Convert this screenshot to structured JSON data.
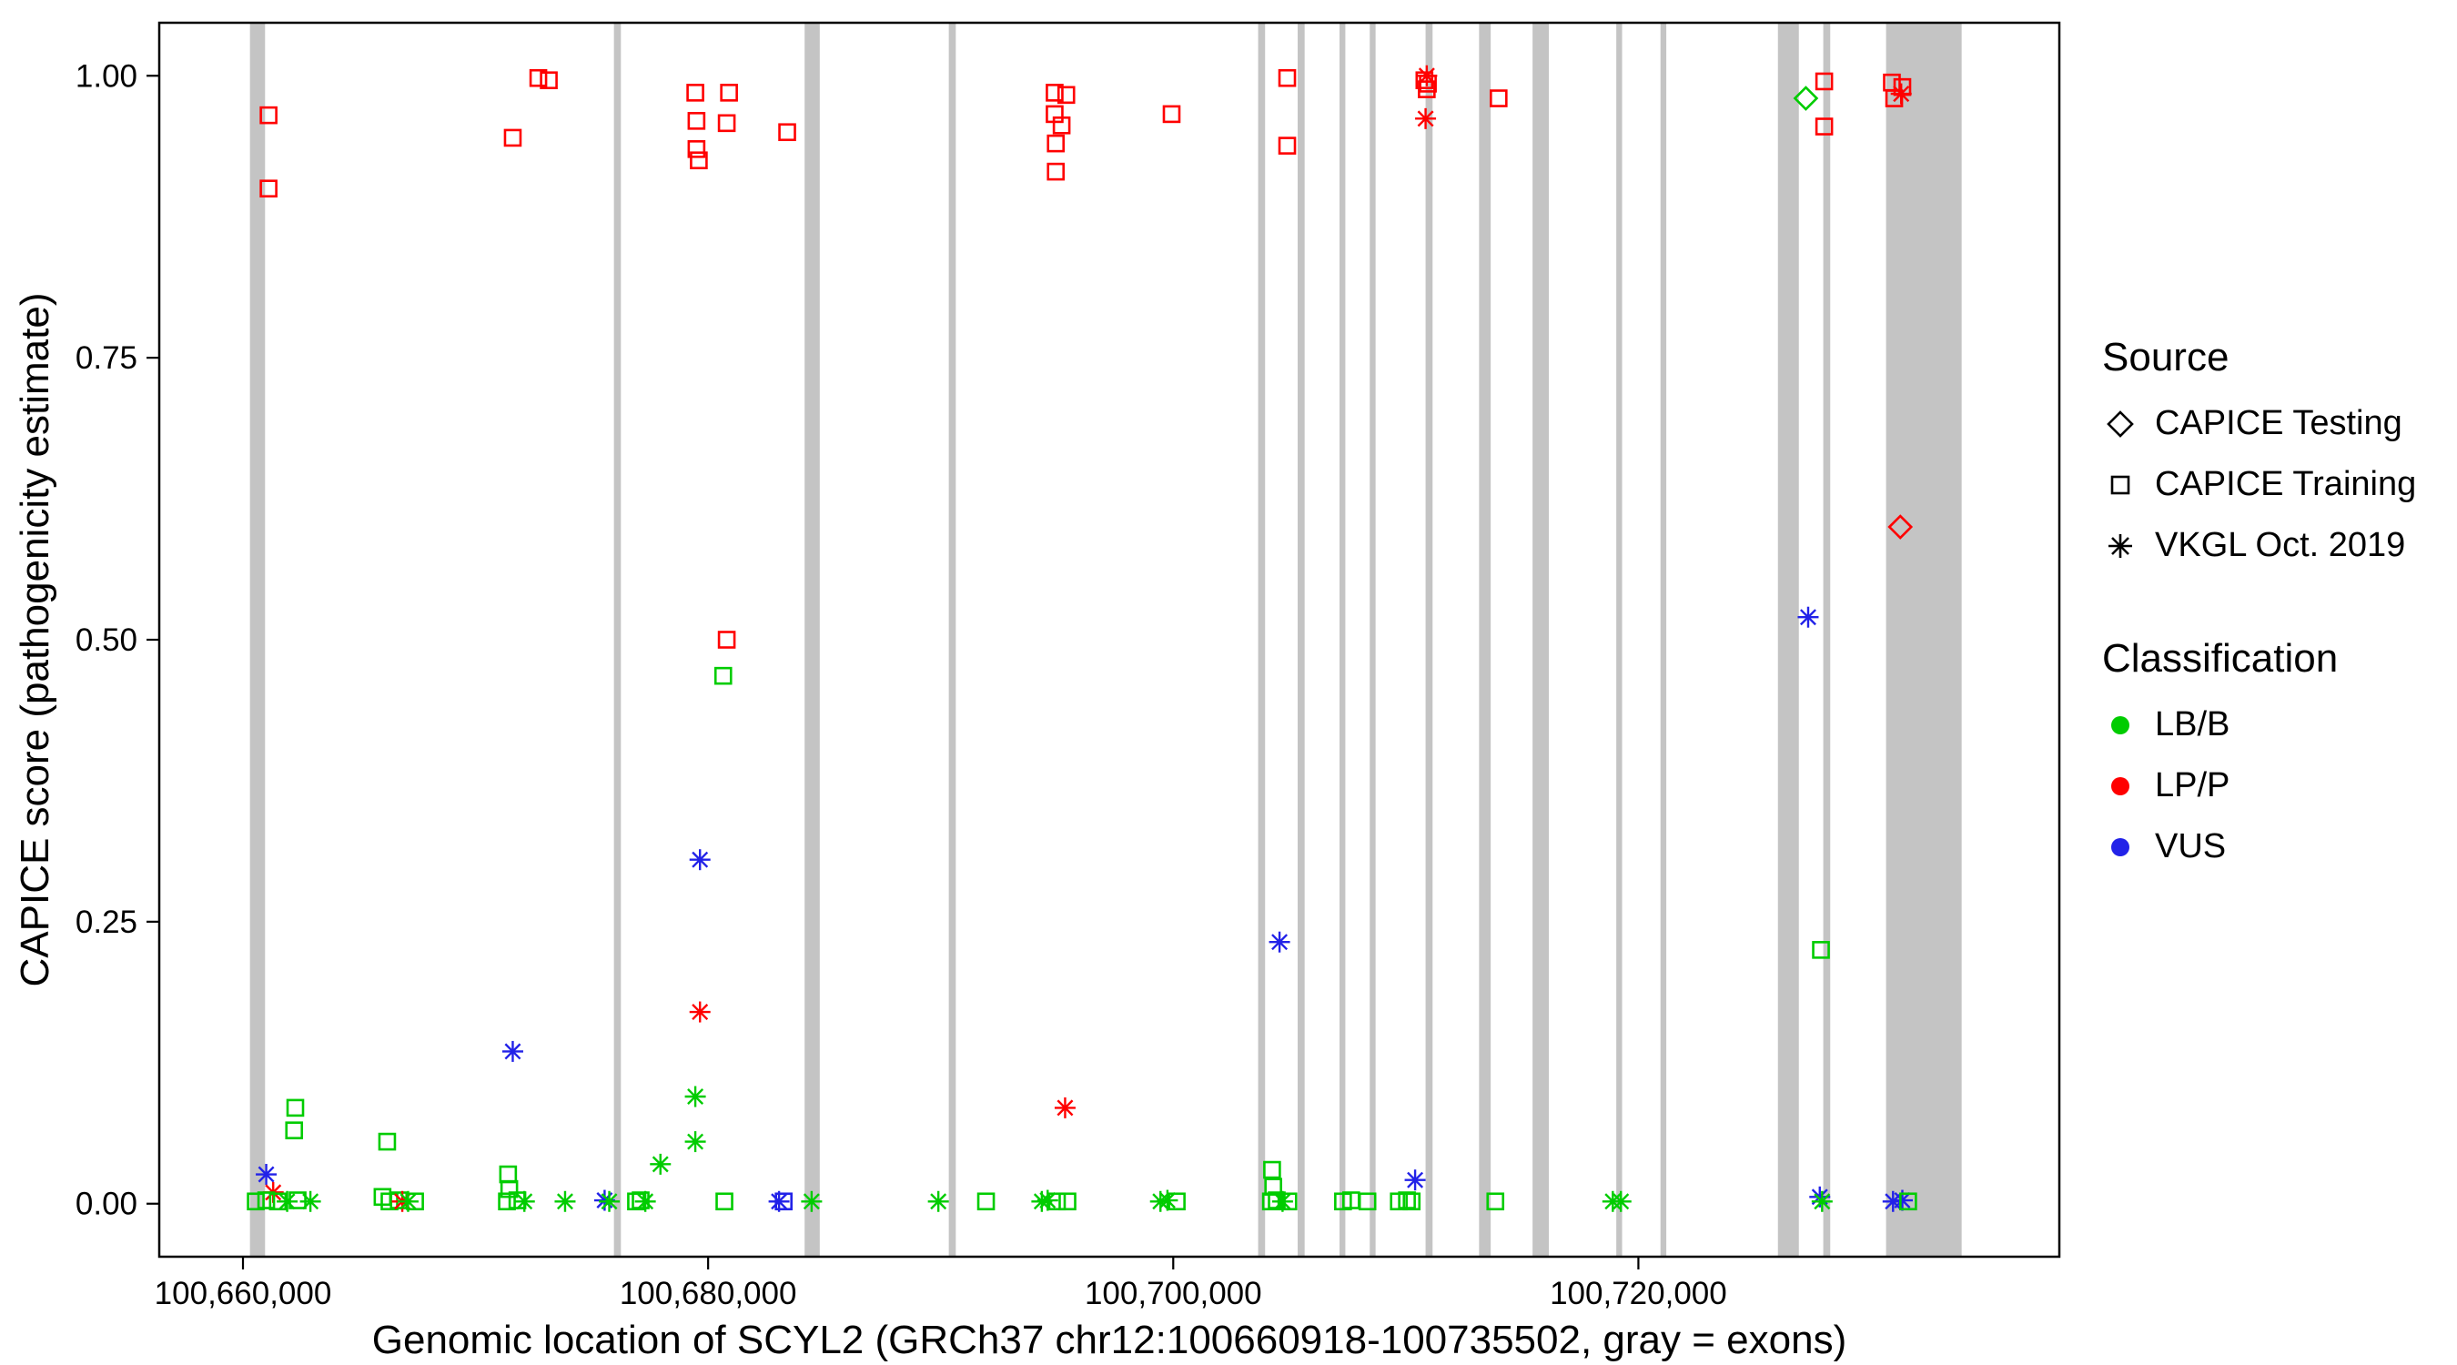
{
  "legend": {
    "source": {
      "title": "Source",
      "items": [
        {
          "label": "CAPICE Testing",
          "marker": "diamond"
        },
        {
          "label": "CAPICE Training",
          "marker": "square"
        },
        {
          "label": "VKGL Oct. 2019",
          "marker": "asterisk"
        }
      ]
    },
    "classification": {
      "title": "Classification",
      "items": [
        {
          "label": "LB/B",
          "color": "#00CC00"
        },
        {
          "label": "LP/P",
          "color": "#FF0000"
        },
        {
          "label": "VUS",
          "color": "#2222E8"
        }
      ]
    }
  },
  "chart_data": {
    "type": "scatter",
    "title": "",
    "xlabel": "Genomic location of SCYL2 (GRCh37 chr12:100660918-100735502, gray = exons)",
    "ylabel": "CAPICE score (pathogenicity estimate)",
    "xlim": [
      100656400,
      100738100
    ],
    "ylim": [
      0,
      1
    ],
    "grid": false,
    "legend_position": "right",
    "x_ticks": [
      {
        "value": 100660000,
        "label": "100,660,000"
      },
      {
        "value": 100680000,
        "label": "100,680,000"
      },
      {
        "value": 100700000,
        "label": "100,700,000"
      },
      {
        "value": 100720000,
        "label": "100,720,000"
      }
    ],
    "y_ticks": [
      {
        "value": 0.0,
        "label": "0.00"
      },
      {
        "value": 0.25,
        "label": "0.25"
      },
      {
        "value": 0.5,
        "label": "0.50"
      },
      {
        "value": 0.75,
        "label": "0.75"
      },
      {
        "value": 1.0,
        "label": "1.00"
      }
    ],
    "exon_color": "#C4C4C4",
    "colors": {
      "LB/B": "#00CC00",
      "LP/P": "#FF0000",
      "VUS": "#2222E8"
    },
    "markers": {
      "test": "diamond",
      "train": "square",
      "vkgl": "asterisk"
    },
    "source_labels": {
      "test": "CAPICE Testing",
      "train": "CAPICE Training",
      "vkgl": "VKGL Oct. 2019"
    },
    "exons": [
      [
        100660300,
        100660950
      ],
      [
        100675950,
        100676250
      ],
      [
        100684150,
        100684800
      ],
      [
        100690350,
        100690650
      ],
      [
        100703650,
        100703950
      ],
      [
        100705350,
        100705650
      ],
      [
        100707150,
        100707400
      ],
      [
        100708450,
        100708700
      ],
      [
        100710850,
        100711150
      ],
      [
        100713150,
        100713650
      ],
      [
        100715450,
        100716150
      ],
      [
        100719050,
        100719300
      ],
      [
        100720950,
        100721200
      ],
      [
        100726000,
        100726900
      ],
      [
        100727950,
        100728250
      ],
      [
        100730650,
        100733900
      ]
    ],
    "points": [
      [
        100661100,
        0.965,
        "train",
        "LP/P"
      ],
      [
        100661100,
        0.9,
        "train",
        "LP/P"
      ],
      [
        100671600,
        0.945,
        "train",
        "LP/P"
      ],
      [
        100672700,
        0.998,
        "train",
        "LP/P"
      ],
      [
        100673150,
        0.996,
        "train",
        "LP/P"
      ],
      [
        100679450,
        0.985,
        "train",
        "LP/P"
      ],
      [
        100679500,
        0.96,
        "train",
        "LP/P"
      ],
      [
        100679500,
        0.935,
        "train",
        "LP/P"
      ],
      [
        100679600,
        0.925,
        "train",
        "LP/P"
      ],
      [
        100680900,
        0.985,
        "train",
        "LP/P"
      ],
      [
        100680800,
        0.958,
        "train",
        "LP/P"
      ],
      [
        100683400,
        0.95,
        "train",
        "LP/P"
      ],
      [
        100694900,
        0.985,
        "train",
        "LP/P"
      ],
      [
        100695400,
        0.983,
        "train",
        "LP/P"
      ],
      [
        100694900,
        0.966,
        "train",
        "LP/P"
      ],
      [
        100695200,
        0.956,
        "train",
        "LP/P"
      ],
      [
        100694950,
        0.94,
        "train",
        "LP/P"
      ],
      [
        100694950,
        0.915,
        "train",
        "LP/P"
      ],
      [
        100699930,
        0.966,
        "train",
        "LP/P"
      ],
      [
        100704900,
        0.998,
        "train",
        "LP/P"
      ],
      [
        100704900,
        0.938,
        "train",
        "LP/P"
      ],
      [
        100710800,
        0.996,
        "train",
        "LP/P"
      ],
      [
        100710950,
        0.993,
        "train",
        "LP/P"
      ],
      [
        100710900,
        0.988,
        "train",
        "LP/P"
      ],
      [
        100710900,
        1.0,
        "vkgl",
        "LP/P"
      ],
      [
        100710850,
        0.962,
        "vkgl",
        "LP/P"
      ],
      [
        100713990,
        0.98,
        "train",
        "LP/P"
      ],
      [
        100727200,
        0.98,
        "test",
        "LB/B"
      ],
      [
        100727990,
        0.995,
        "train",
        "LP/P"
      ],
      [
        100727990,
        0.955,
        "train",
        "LP/P"
      ],
      [
        100730900,
        0.994,
        "train",
        "LP/P"
      ],
      [
        100731000,
        0.98,
        "train",
        "LP/P"
      ],
      [
        100731350,
        0.99,
        "train",
        "LP/P"
      ],
      [
        100731300,
        0.984,
        "vkgl",
        "LP/P"
      ],
      [
        100731262,
        0.6,
        "test",
        "LP/P"
      ],
      [
        100680800,
        0.5,
        "train",
        "LP/P"
      ],
      [
        100680650,
        0.468,
        "train",
        "LB/B"
      ],
      [
        100679650,
        0.305,
        "vkgl",
        "VUS"
      ],
      [
        100679650,
        0.17,
        "vkgl",
        "LP/P"
      ],
      [
        100679450,
        0.095,
        "vkgl",
        "LB/B"
      ],
      [
        100679450,
        0.055,
        "vkgl",
        "LB/B"
      ],
      [
        100677950,
        0.035,
        "vkgl",
        "LB/B"
      ],
      [
        100671600,
        0.135,
        "vkgl",
        "VUS"
      ],
      [
        100704570,
        0.232,
        "vkgl",
        "VUS"
      ],
      [
        100727300,
        0.52,
        "vkgl",
        "VUS"
      ],
      [
        100727850,
        0.225,
        "train",
        "LB/B"
      ],
      [
        100695350,
        0.085,
        "vkgl",
        "LP/P"
      ],
      [
        100661000,
        0.026,
        "vkgl",
        "VUS"
      ],
      [
        100661300,
        0.01,
        "vkgl",
        "LP/P"
      ],
      [
        100662250,
        0.085,
        "train",
        "LB/B"
      ],
      [
        100662200,
        0.065,
        "train",
        "LB/B"
      ],
      [
        100660550,
        0.002,
        "train",
        "LB/B"
      ],
      [
        100661000,
        0.003,
        "train",
        "LB/B"
      ],
      [
        100661500,
        0.002,
        "train",
        "LB/B"
      ],
      [
        100661900,
        0.002,
        "vkgl",
        "LB/B"
      ],
      [
        100662350,
        0.003,
        "train",
        "LB/B"
      ],
      [
        100662900,
        0.002,
        "vkgl",
        "LB/B"
      ],
      [
        100666200,
        0.055,
        "train",
        "LB/B"
      ],
      [
        100666000,
        0.006,
        "train",
        "LB/B"
      ],
      [
        100666300,
        0.002,
        "train",
        "LB/B"
      ],
      [
        100666700,
        0.003,
        "train",
        "LB/B"
      ],
      [
        100666850,
        0.002,
        "vkgl",
        "LP/P"
      ],
      [
        100667100,
        0.002,
        "vkgl",
        "LB/B"
      ],
      [
        100667400,
        0.002,
        "train",
        "LB/B"
      ],
      [
        100671400,
        0.026,
        "train",
        "LB/B"
      ],
      [
        100671450,
        0.013,
        "train",
        "LB/B"
      ],
      [
        100671350,
        0.002,
        "train",
        "LB/B"
      ],
      [
        100671800,
        0.003,
        "train",
        "LB/B"
      ],
      [
        100672100,
        0.002,
        "vkgl",
        "LB/B"
      ],
      [
        100673850,
        0.002,
        "vkgl",
        "LB/B"
      ],
      [
        100675550,
        0.003,
        "vkgl",
        "VUS"
      ],
      [
        100675750,
        0.002,
        "vkgl",
        "LB/B"
      ],
      [
        100676900,
        0.002,
        "train",
        "LB/B"
      ],
      [
        100677100,
        0.003,
        "train",
        "LB/B"
      ],
      [
        100677300,
        0.002,
        "vkgl",
        "LB/B"
      ],
      [
        100680700,
        0.002,
        "train",
        "LB/B"
      ],
      [
        100683050,
        0.002,
        "vkgl",
        "VUS"
      ],
      [
        100683250,
        0.002,
        "train",
        "VUS"
      ],
      [
        100684450,
        0.002,
        "vkgl",
        "LB/B"
      ],
      [
        100689900,
        0.002,
        "vkgl",
        "LB/B"
      ],
      [
        100691950,
        0.002,
        "train",
        "LB/B"
      ],
      [
        100694350,
        0.002,
        "vkgl",
        "LB/B"
      ],
      [
        100694600,
        0.003,
        "vkgl",
        "LB/B"
      ],
      [
        100695000,
        0.002,
        "train",
        "LB/B"
      ],
      [
        100695450,
        0.002,
        "train",
        "LB/B"
      ],
      [
        100699450,
        0.002,
        "vkgl",
        "LB/B"
      ],
      [
        100699750,
        0.003,
        "vkgl",
        "LB/B"
      ],
      [
        100700150,
        0.002,
        "train",
        "LB/B"
      ],
      [
        100704250,
        0.03,
        "train",
        "LB/B"
      ],
      [
        100704300,
        0.015,
        "train",
        "LB/B"
      ],
      [
        100704200,
        0.002,
        "train",
        "LB/B"
      ],
      [
        100704450,
        0.003,
        "train",
        "LB/B"
      ],
      [
        100704700,
        0.002,
        "vkgl",
        "LB/B"
      ],
      [
        100704950,
        0.002,
        "train",
        "LB/B"
      ],
      [
        100707300,
        0.002,
        "train",
        "LB/B"
      ],
      [
        100707650,
        0.003,
        "train",
        "LB/B"
      ],
      [
        100708350,
        0.002,
        "train",
        "LB/B"
      ],
      [
        100709700,
        0.002,
        "train",
        "LB/B"
      ],
      [
        100710050,
        0.003,
        "train",
        "LB/B"
      ],
      [
        100710400,
        0.021,
        "vkgl",
        "VUS"
      ],
      [
        100710250,
        0.002,
        "train",
        "LB/B"
      ],
      [
        100713850,
        0.002,
        "train",
        "LB/B"
      ],
      [
        100718900,
        0.002,
        "vkgl",
        "LB/B"
      ],
      [
        100719250,
        0.002,
        "vkgl",
        "LB/B"
      ],
      [
        100727800,
        0.006,
        "vkgl",
        "VUS"
      ],
      [
        100727900,
        0.002,
        "vkgl",
        "LB/B"
      ],
      [
        100730950,
        0.002,
        "vkgl",
        "VUS"
      ],
      [
        100731350,
        0.003,
        "vkgl",
        "VUS"
      ],
      [
        100731600,
        0.002,
        "train",
        "LB/B"
      ]
    ]
  }
}
